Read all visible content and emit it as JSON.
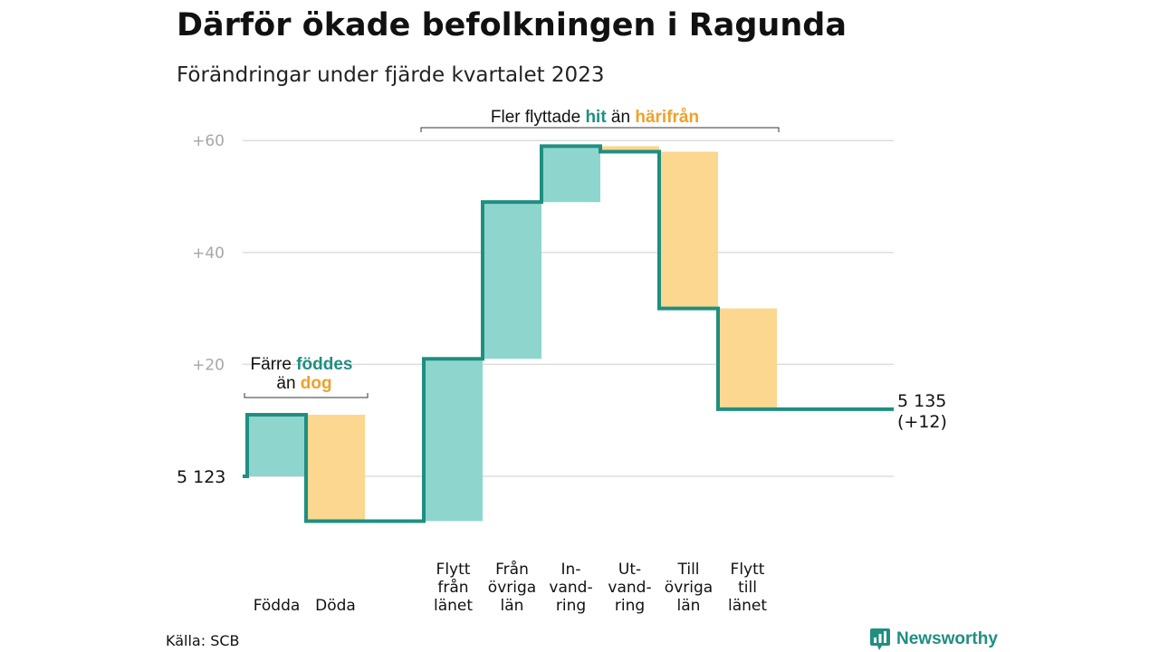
{
  "colors": {
    "teal": "#1f8f80",
    "teal_fill": "#8ed6cd",
    "orange": "#f0a02b",
    "orange_fill": "#fbd78f",
    "grid": "#dddddd",
    "tick_text": "#a7a7a7"
  },
  "header": {
    "title": "Därför ökade befolkningen i Ragunda",
    "subtitle": "Förändringar under fjärde kvartalet 2023"
  },
  "annotations": {
    "births": {
      "line1_pre": "Färre ",
      "line1_hl": "föddes",
      "line2_pre": "än ",
      "line2_hl": "dog"
    },
    "moves": {
      "pre": "Fler flyttade ",
      "hl1": "hit",
      "mid": " än ",
      "hl2": "härifrån"
    }
  },
  "chart_data": {
    "type": "waterfall",
    "start_value": 5123,
    "start_label": "5  123",
    "end_value": 5135,
    "end_label_line1": "5 135",
    "end_label_line2": "(+12)",
    "y_axis": {
      "baseline": 5123,
      "ticks": [
        20,
        40,
        60
      ],
      "tick_labels": [
        "+20",
        "+40",
        "+60"
      ],
      "ylim": [
        -10,
        62
      ],
      "grid": true
    },
    "steps": [
      {
        "label_lines": [
          "Födda"
        ],
        "from": 0,
        "to": 11,
        "kind": "in",
        "group": "births"
      },
      {
        "label_lines": [
          "Döda"
        ],
        "from": 11,
        "to": -8,
        "kind": "out",
        "group": "births"
      },
      {
        "label_lines": [
          "Flytt",
          "från",
          "länet"
        ],
        "from": -8,
        "to": 21,
        "kind": "in",
        "group": "moves"
      },
      {
        "label_lines": [
          "Från",
          "övriga",
          "län"
        ],
        "from": 21,
        "to": 49,
        "kind": "in",
        "group": "moves"
      },
      {
        "label_lines": [
          "In-",
          "vand-",
          "ring"
        ],
        "from": 49,
        "to": 59,
        "kind": "in",
        "group": "moves"
      },
      {
        "label_lines": [
          "Ut-",
          "vand-",
          "ring"
        ],
        "from": 59,
        "to": 58,
        "kind": "out",
        "group": "moves"
      },
      {
        "label_lines": [
          "Till",
          "övriga",
          "län"
        ],
        "from": 58,
        "to": 30,
        "kind": "out",
        "group": "moves"
      },
      {
        "label_lines": [
          "Flytt",
          "till",
          "länet"
        ],
        "from": 30,
        "to": 12,
        "kind": "out",
        "group": "moves"
      }
    ]
  },
  "footer": {
    "source": "Källa: SCB",
    "brand": "Newsworthy",
    "brand_icon": "bar-chart-speech-bubble-icon"
  }
}
